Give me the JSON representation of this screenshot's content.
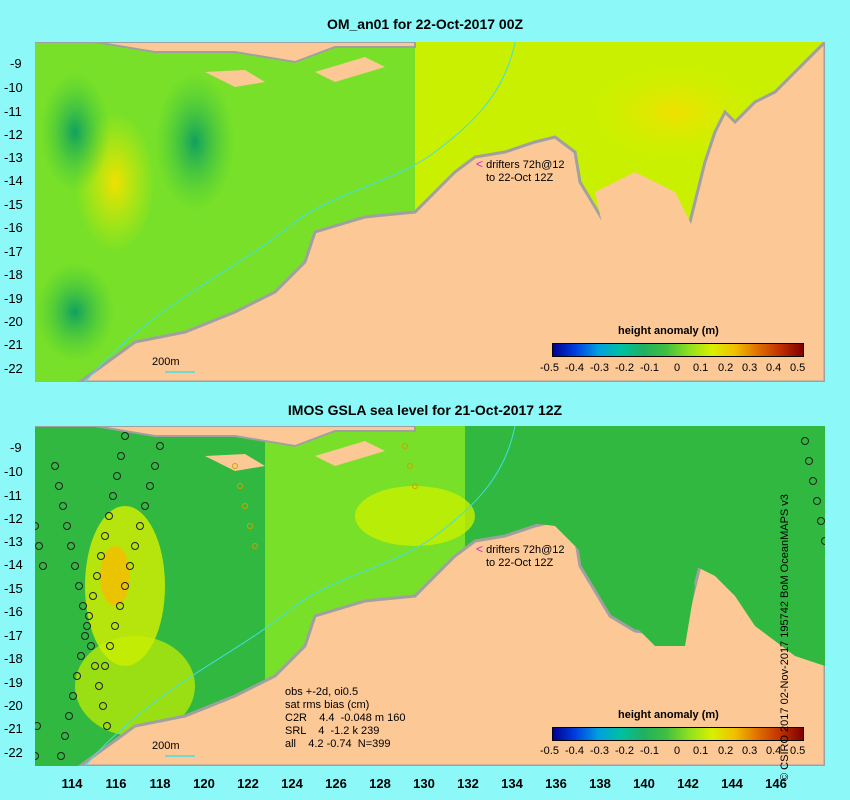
{
  "panel_top": {
    "title": "OM_an01 for 22-Oct-2017 00Z",
    "y_labels": [
      "-9",
      "-10",
      "-11",
      "-12",
      "-13",
      "-14",
      "-15",
      "-16",
      "-17",
      "-18",
      "-19",
      "-20",
      "-21",
      "-22"
    ],
    "drifters_line1": "drifters 72h@12",
    "drifters_line2": "to 22-Oct 12Z",
    "depth_label": "200m",
    "colorbar_title": "height anomaly (m)"
  },
  "panel_bottom": {
    "title": "IMOS GSLA sea level  for 21-Oct-2017 12Z",
    "y_labels": [
      "-9",
      "-10",
      "-11",
      "-12",
      "-13",
      "-14",
      "-15",
      "-16",
      "-17",
      "-18",
      "-19",
      "-20",
      "-21",
      "-22"
    ],
    "drifters_line1": "drifters 72h@12",
    "drifters_line2": "to 22-Oct 12Z",
    "depth_label": "200m",
    "stats": [
      "obs +-2d, oi0.5",
      "sat rms bias (cm)",
      "C2R    4.4  -0.048 m 160",
      "SRL    4  -1.2 k 239",
      "all    4.2 -0.74  N=399"
    ],
    "colorbar_title": "height anomaly (m)"
  },
  "x_labels": [
    "114",
    "116",
    "118",
    "120",
    "122",
    "124",
    "126",
    "128",
    "130",
    "132",
    "134",
    "136",
    "138",
    "140",
    "142",
    "144",
    "146"
  ],
  "colorbar_ticks": [
    "-0.5",
    "-0.4",
    "-0.3",
    "-0.2",
    "-0.1",
    "0",
    "0.1",
    "0.2",
    "0.3",
    "0.4",
    "0.5"
  ],
  "credit": "© CSIRO 2017  02-Nov-2017 195742 BoM OceanMAPS v3",
  "colors": {
    "background": "#8cf8f8",
    "land": "#fcc896",
    "sea_green": "#3cc83c",
    "sea_yellow": "#d8f000",
    "shelf_grey": "#a0a0a0"
  }
}
